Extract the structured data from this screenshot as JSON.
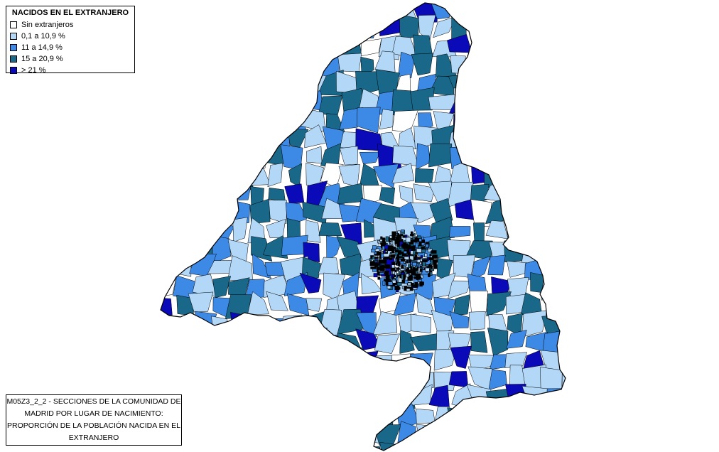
{
  "map": {
    "region": "Comunidad de Madrid",
    "legend": {
      "title": "NACIDOS EN EL EXTRANJERO",
      "items": [
        {
          "label": "Sin extranjeros",
          "color": "#ffffff"
        },
        {
          "label": "0,1 a 10,9 %",
          "color": "#b3d7f7"
        },
        {
          "label": "11 a 14,9 %",
          "color": "#3d8ae6"
        },
        {
          "label": "15 a 20,9 %",
          "color": "#19688a"
        },
        {
          "label": "> 21 %",
          "color": "#0a0ab8"
        }
      ]
    },
    "caption": {
      "lines": [
        "M05Z3_2_2 - SECCIONES DE LA COMUNIDAD DE",
        "MADRID POR LUGAR DE NACIMIENTO:",
        "PROPORCIÓN DE LA POBLACIÓN NACIDA EN EL",
        "EXTRANJERO"
      ]
    }
  }
}
